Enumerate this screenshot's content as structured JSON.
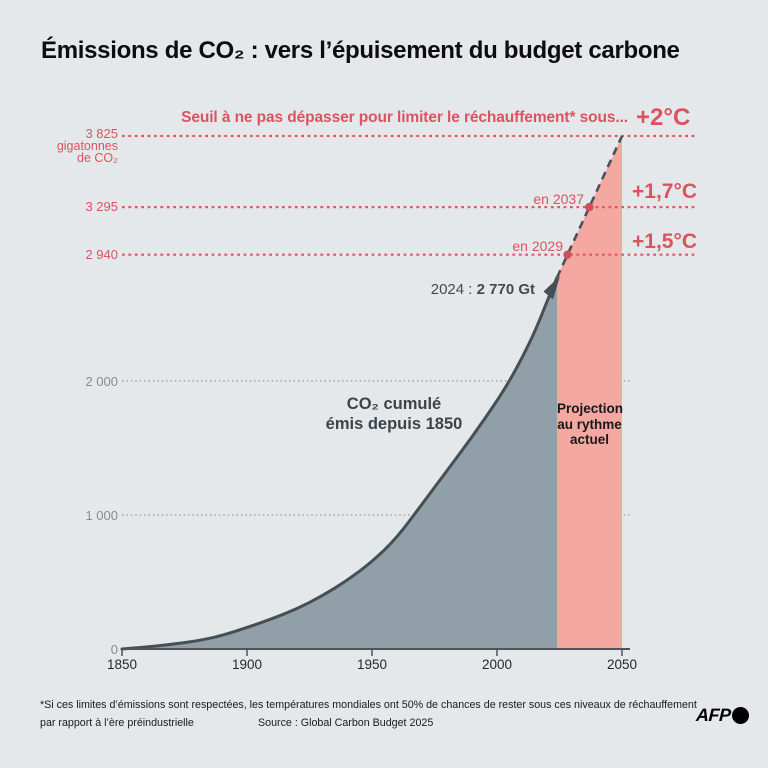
{
  "title": "Émissions de CO₂ : vers l’épuisement du budget carbone",
  "chart_data": {
    "type": "area",
    "title": "Émissions de CO₂ : vers l’épuisement du budget carbone",
    "ylabel": "gigatonnes de CO₂",
    "ylabel_lines": [
      "gigatonnes",
      "de CO₂"
    ],
    "xlim": [
      1850,
      2050
    ],
    "ylim": [
      0,
      3825
    ],
    "x_ticks": [
      "1850",
      "1900",
      "1950",
      "2000",
      "2050"
    ],
    "y_gridlines": [
      {
        "label": "0",
        "value": 0
      },
      {
        "label": "1 000",
        "value": 1000
      },
      {
        "label": "2 000",
        "value": 2000
      }
    ],
    "threshold_heading": "Seuil à ne pas dépasser pour limiter le réchauffement* sous...",
    "thresholds": [
      {
        "label": "2 940",
        "value": 2940,
        "temp": "+1,5°C",
        "reached": "en 2029",
        "reached_year": 2029
      },
      {
        "label": "3 295",
        "value": 3295,
        "temp": "+1,7°C",
        "reached": "en 2037",
        "reached_year": 2037
      },
      {
        "label": "3 825",
        "value": 3825,
        "temp": "+2°C",
        "reached": null,
        "reached_year": 2050
      }
    ],
    "series": [
      {
        "name": "CO₂ cumulé émis depuis 1850",
        "type": "area",
        "x": [
          1850,
          1860,
          1870,
          1880,
          1890,
          1900,
          1910,
          1920,
          1930,
          1940,
          1950,
          1960,
          1970,
          1980,
          1990,
          2000,
          2005,
          2010,
          2015,
          2020,
          2024
        ],
        "y": [
          0,
          15,
          35,
          60,
          100,
          160,
          225,
          300,
          395,
          510,
          650,
          830,
          1080,
          1330,
          1580,
          1850,
          2000,
          2170,
          2360,
          2590,
          2770
        ]
      },
      {
        "name": "Projection au rythme actuel",
        "type": "projection",
        "x": [
          2024,
          2050
        ],
        "y": [
          2770,
          3825
        ]
      }
    ],
    "annotation_2024": {
      "prefix": "2024 :",
      "value": "2 770 Gt"
    },
    "area_label_lines": [
      "CO₂ cumulé",
      "émis depuis 1850"
    ],
    "projection_label_lines": [
      "Projection",
      "au rythme",
      "actuel"
    ]
  },
  "colors": {
    "background": "#e4e8eb",
    "red": "#dc535f",
    "area_gray": "#909fa8",
    "curve_stroke": "#474f55",
    "projection_pink": "#f5a7a2",
    "dot_red": "#d14f5b",
    "gray_label": "#848d93",
    "text_dark": "#191919"
  },
  "footer": {
    "note_line1": "*Si ces limites d’émissions sont respectées, les températures mondiales ont 50% de chances de rester sous ces niveaux de réchauffement",
    "note_line2": "par rapport à l’ère préindustrielle",
    "source": "Source : Global Carbon Budget 2025",
    "credit": "AFP"
  }
}
